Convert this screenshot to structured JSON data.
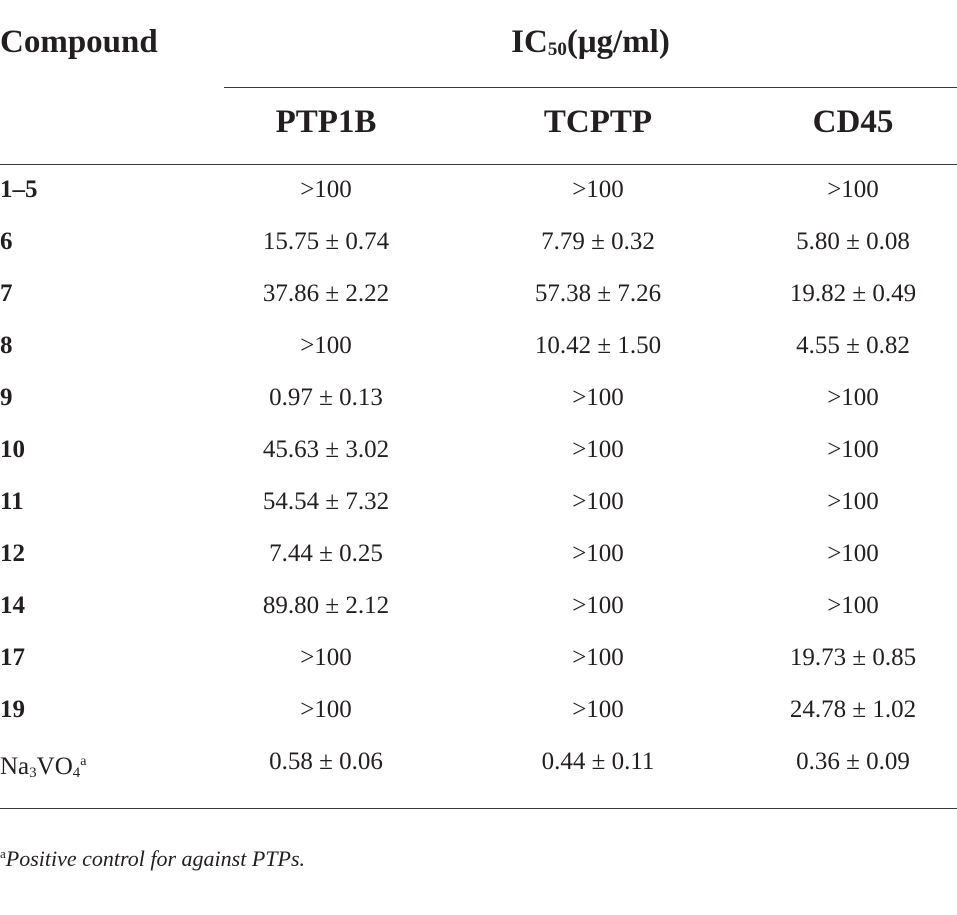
{
  "table": {
    "compound_header": "Compound",
    "ic50_label": "IC",
    "ic50_subscript": "50",
    "ic50_unit": "(μg/ml)",
    "columns": [
      "PTP1B",
      "TCPTP",
      "CD45"
    ],
    "rows": [
      {
        "compound": "1–5",
        "values": [
          ">100",
          ">100",
          ">100"
        ]
      },
      {
        "compound": "6",
        "values": [
          "15.75 ± 0.74",
          "7.79 ± 0.32",
          "5.80 ± 0.08"
        ]
      },
      {
        "compound": "7",
        "values": [
          "37.86 ± 2.22",
          "57.38 ± 7.26",
          "19.82 ± 0.49"
        ]
      },
      {
        "compound": "8",
        "values": [
          ">100",
          "10.42 ± 1.50",
          "4.55 ± 0.82"
        ]
      },
      {
        "compound": "9",
        "values": [
          "0.97 ± 0.13",
          ">100",
          ">100"
        ]
      },
      {
        "compound": "10",
        "values": [
          "45.63 ± 3.02",
          ">100",
          ">100"
        ]
      },
      {
        "compound": "11",
        "values": [
          "54.54 ± 7.32",
          ">100",
          ">100"
        ]
      },
      {
        "compound": "12",
        "values": [
          "7.44 ± 0.25",
          ">100",
          ">100"
        ]
      },
      {
        "compound": "14",
        "values": [
          "89.80 ± 2.12",
          ">100",
          ">100"
        ]
      },
      {
        "compound": "17",
        "values": [
          ">100",
          ">100",
          "19.73 ± 0.85"
        ]
      },
      {
        "compound": "19",
        "values": [
          ">100",
          ">100",
          "24.78 ± 1.02"
        ]
      }
    ],
    "control_row": {
      "compound_na": "Na",
      "compound_sub1": "3",
      "compound_vo": "VO",
      "compound_sub2": "4",
      "compound_sup": "a",
      "values": [
        "0.58 ± 0.06",
        "0.44 ± 0.11",
        "0.36 ± 0.09"
      ]
    }
  },
  "footnote": {
    "marker": "a",
    "text": "Positive control for against PTPs."
  }
}
